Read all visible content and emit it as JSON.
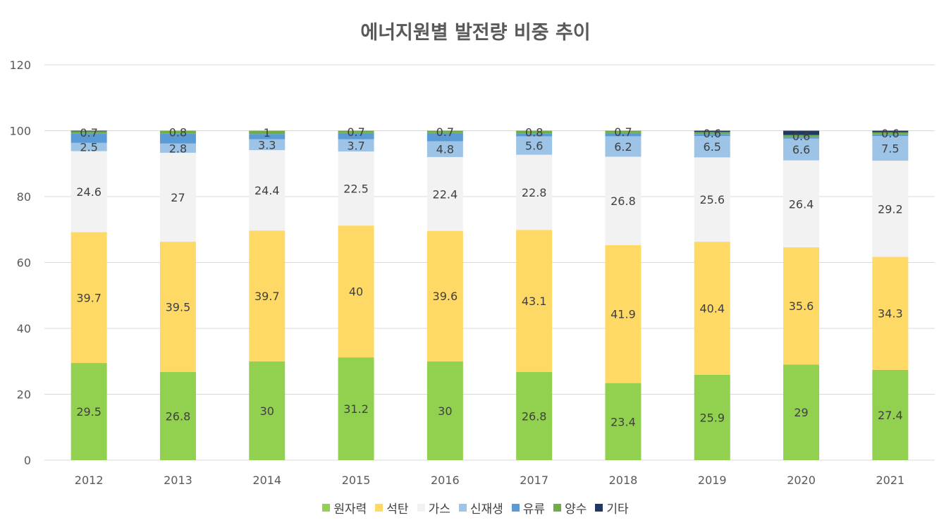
{
  "chart_data": {
    "type": "bar",
    "stacked": true,
    "title": "에너지원별 발전량 비중 추이",
    "xlabel": "",
    "ylabel": "",
    "ylim": [
      0,
      120
    ],
    "yticks": [
      "0",
      "20",
      "40",
      "60",
      "80",
      "100",
      "120"
    ],
    "grid": true,
    "legend_position": "bottom",
    "categories": [
      "2012",
      "2013",
      "2014",
      "2015",
      "2016",
      "2017",
      "2018",
      "2019",
      "2020",
      "2021"
    ],
    "series": [
      {
        "name": "원자력",
        "color": "#92d050",
        "values": [
          29.5,
          26.8,
          30,
          31.2,
          30,
          26.8,
          23.4,
          25.9,
          29,
          27.4
        ]
      },
      {
        "name": "석탄",
        "color": "#ffd966",
        "values": [
          39.7,
          39.5,
          39.7,
          40,
          39.6,
          43.1,
          41.9,
          40.4,
          35.6,
          34.3
        ]
      },
      {
        "name": "가스",
        "color": "#f2f2f2",
        "values": [
          24.6,
          27,
          24.4,
          22.5,
          22.4,
          22.8,
          26.8,
          25.6,
          26.4,
          29.2
        ]
      },
      {
        "name": "신재생",
        "color": "#9dc3e6",
        "values": [
          2.5,
          2.8,
          3.3,
          3.7,
          4.8,
          5.6,
          6.2,
          6.5,
          6.6,
          7.5
        ]
      },
      {
        "name": "유류",
        "color": "#5b9bd5",
        "values": [
          2.8,
          3.1,
          1.6,
          1.9,
          2.5,
          0.9,
          1.0,
          0.6,
          0.5,
          0.5
        ]
      },
      {
        "name": "양수",
        "color": "#70ad47",
        "values": [
          0.7,
          0.8,
          1,
          0.7,
          0.7,
          0.8,
          0.7,
          0.6,
          0.6,
          0.6
        ]
      },
      {
        "name": "기타",
        "color": "#203864",
        "values": [
          0.2,
          0.0,
          0.0,
          0.0,
          0.0,
          0.0,
          0.0,
          0.4,
          1.3,
          0.5
        ]
      }
    ],
    "data_labels": {
      "원자력": [
        "29.5",
        "26.8",
        "30",
        "31.2",
        "30",
        "26.8",
        "23.4",
        "25.9",
        "29",
        "27.4"
      ],
      "석탄": [
        "39.7",
        "39.5",
        "39.7",
        "40",
        "39.6",
        "43.1",
        "41.9",
        "40.4",
        "35.6",
        "34.3"
      ],
      "가스": [
        "24.6",
        "27",
        "24.4",
        "22.5",
        "22.4",
        "22.8",
        "26.8",
        "25.6",
        "26.4",
        "29.2"
      ],
      "신재생": [
        "2.5",
        "2.8",
        "3.3",
        "3.7",
        "4.8",
        "5.6",
        "6.2",
        "6.5",
        "6.6",
        "7.5"
      ],
      "양수": [
        "0.7",
        "0.8",
        "1",
        "0.7",
        "0.7",
        "0.8",
        "0.7",
        "0.6",
        "0.6",
        "0.6"
      ]
    }
  }
}
